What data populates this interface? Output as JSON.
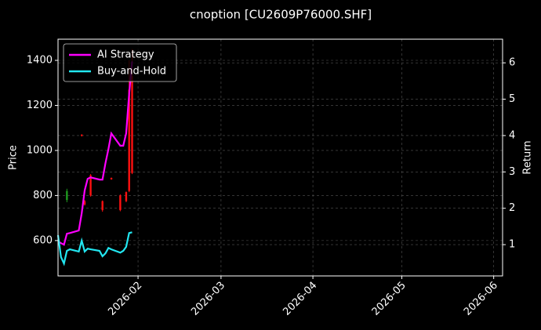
{
  "chart_data": {
    "type": "candlestick-lines",
    "title": "cnoption [CU2609P76000.SHF]",
    "y_label": "Price",
    "y2_label": "Return",
    "xlim": [
      "2026-01-05",
      "2026-06-04"
    ],
    "xticks": [
      {
        "value": "2026-02-01",
        "label": "2026-02"
      },
      {
        "value": "2026-03-01",
        "label": "2026-03"
      },
      {
        "value": "2026-04-01",
        "label": "2026-04"
      },
      {
        "value": "2026-05-01",
        "label": "2026-05"
      },
      {
        "value": "2026-06-01",
        "label": "2026-06"
      }
    ],
    "ylim": [
      443,
      1494
    ],
    "yticks": [
      600,
      800,
      1000,
      1200,
      1400
    ],
    "y2lim": [
      0.14,
      6.65
    ],
    "y2ticks": [
      1,
      2,
      3,
      4,
      5,
      6
    ],
    "grid": true,
    "legend": "upper left",
    "up_color": "#1f9a1f",
    "down_color": "#ff1010",
    "candles": {
      "x": [
        "2026-01-08",
        "2026-01-13",
        "2026-01-14",
        "2026-01-16",
        "2026-01-20",
        "2026-01-23",
        "2026-01-26",
        "2026-01-28",
        "2026-01-29",
        "2026-01-30"
      ],
      "open": [
        780,
        1070,
        775,
        890,
        775,
        878,
        800,
        815,
        1270,
        1330
      ],
      "high": [
        830,
        1072,
        780,
        895,
        778,
        880,
        805,
        818,
        1400,
        1450
      ],
      "low": [
        770,
        1062,
        755,
        795,
        728,
        870,
        730,
        770,
        815,
        895
      ],
      "close": [
        820,
        1065,
        760,
        800,
        735,
        872,
        735,
        775,
        820,
        900
      ]
    },
    "x": [
      "2026-01-05",
      "2026-01-06",
      "2026-01-07",
      "2026-01-08",
      "2026-01-09",
      "2026-01-12",
      "2026-01-13",
      "2026-01-14",
      "2026-01-15",
      "2026-01-16",
      "2026-01-19",
      "2026-01-20",
      "2026-01-21",
      "2026-01-22",
      "2026-01-23",
      "2026-01-26",
      "2026-01-27",
      "2026-01-28",
      "2026-01-29",
      "2026-01-30"
    ],
    "series": [
      {
        "name": "AI Strategy",
        "color": "#ff00ff",
        "axis": "y2",
        "values": [
          1.09,
          1.04,
          1.0,
          1.3,
          1.32,
          1.39,
          1.86,
          2.49,
          2.81,
          2.85,
          2.79,
          2.79,
          3.24,
          3.63,
          4.06,
          3.72,
          3.72,
          4.06,
          5.14,
          6.04
        ]
      },
      {
        "name": "Buy-and-Hold",
        "color": "#22e6f0",
        "axis": "y2",
        "values": [
          1.26,
          0.66,
          0.48,
          0.83,
          0.87,
          0.81,
          1.11,
          0.81,
          0.89,
          0.87,
          0.83,
          0.68,
          0.76,
          0.91,
          0.87,
          0.78,
          0.83,
          0.94,
          1.32,
          1.34
        ]
      }
    ]
  }
}
